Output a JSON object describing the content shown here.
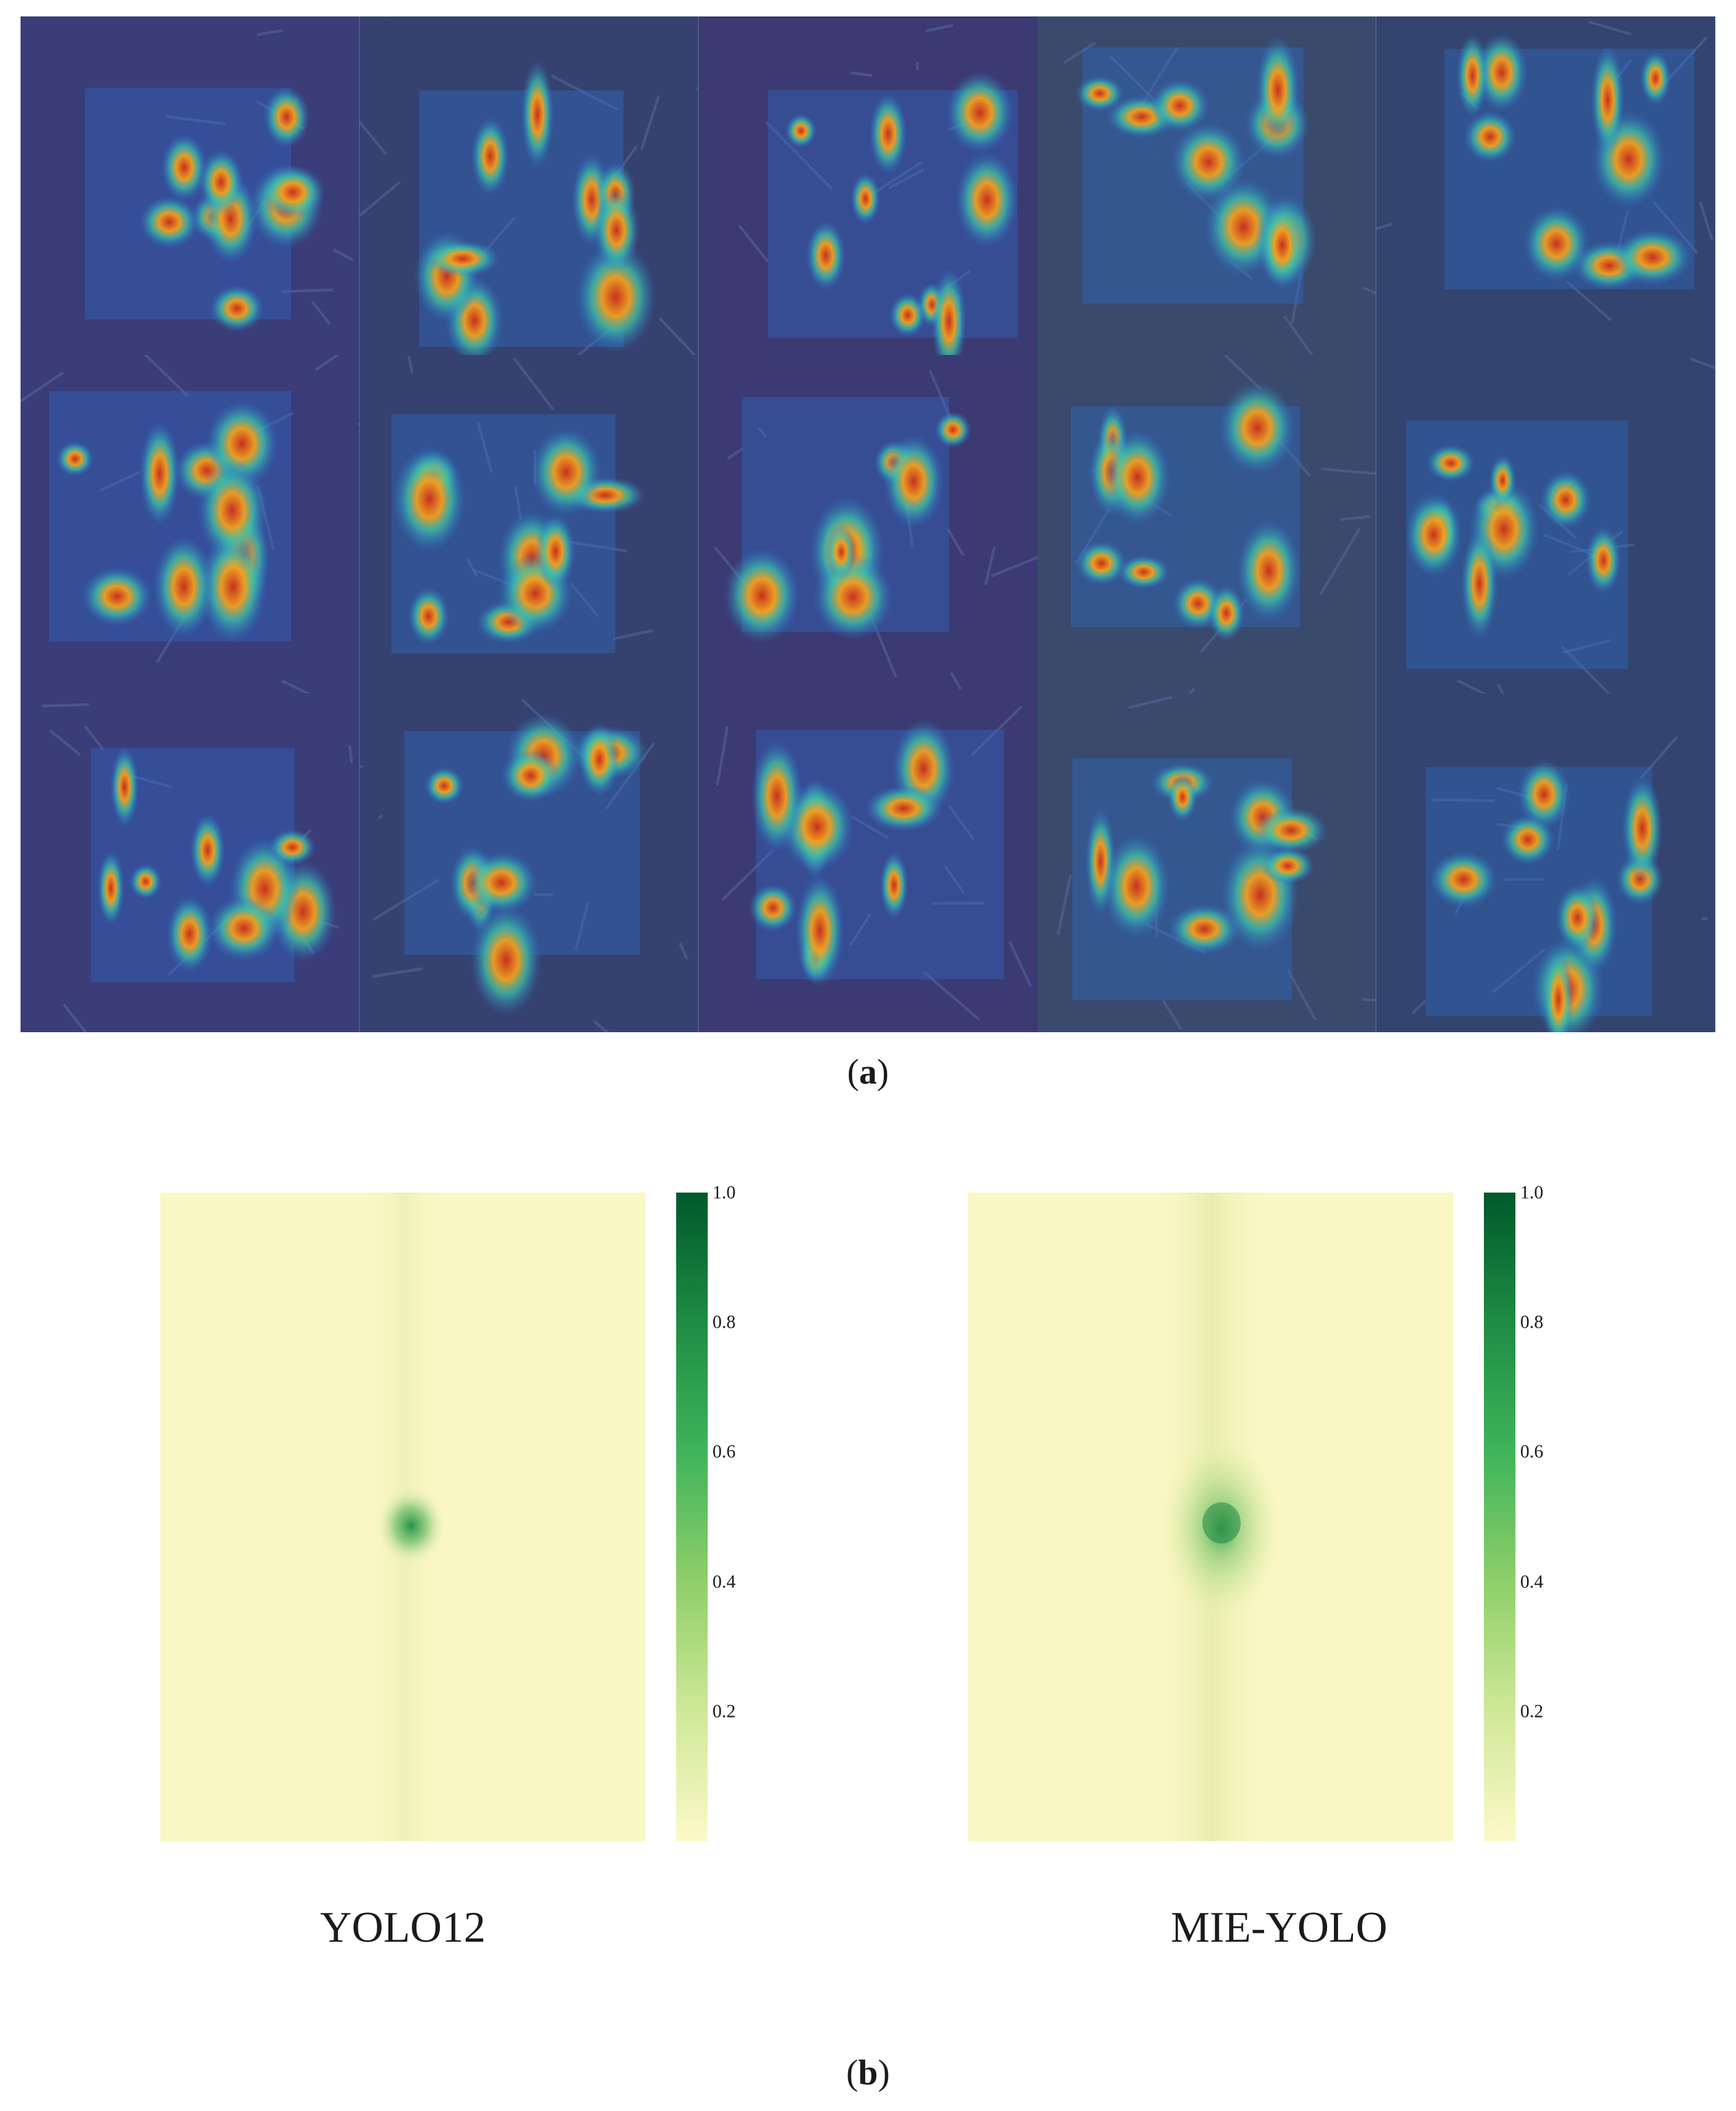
{
  "figure": {
    "panel_a_label": "a",
    "panel_b_label": "b"
  },
  "panel_a": {
    "rows": 3,
    "columns": 5,
    "cells": [
      {
        "id": 1,
        "content": "grad-cam overlay"
      },
      {
        "id": 2,
        "content": "grad-cam overlay"
      },
      {
        "id": 3,
        "content": "grad-cam overlay"
      },
      {
        "id": 4,
        "content": "grad-cam overlay"
      },
      {
        "id": 5,
        "content": "grad-cam overlay"
      },
      {
        "id": 6,
        "content": "grad-cam overlay"
      },
      {
        "id": 7,
        "content": "grad-cam overlay"
      },
      {
        "id": 8,
        "content": "grad-cam overlay"
      },
      {
        "id": 9,
        "content": "grad-cam overlay"
      },
      {
        "id": 10,
        "content": "grad-cam overlay"
      },
      {
        "id": 11,
        "content": "grad-cam overlay"
      },
      {
        "id": 12,
        "content": "grad-cam overlay"
      },
      {
        "id": 13,
        "content": "grad-cam overlay"
      },
      {
        "id": 14,
        "content": "grad-cam overlay"
      },
      {
        "id": 15,
        "content": "grad-cam overlay"
      }
    ]
  },
  "colors": {
    "heatmap_low": "#fbf7c4",
    "heatmap_high": "#00592b",
    "cam_background": "#3b3f7a"
  },
  "chart_data": [
    {
      "type": "heatmap",
      "series_label": "YOLO12",
      "colorbar_ticks": [
        "0.2",
        "0.4",
        "0.6",
        "0.8",
        "1.0"
      ],
      "colorbar_range": [
        0,
        1.0
      ],
      "hotspot": {
        "peak": 0.65,
        "spread": "small"
      }
    },
    {
      "type": "heatmap",
      "series_label": "MIE-YOLO",
      "colorbar_ticks": [
        "0.2",
        "0.4",
        "0.6",
        "0.8",
        "1.0"
      ],
      "colorbar_range": [
        0,
        1.0
      ],
      "hotspot": {
        "peak": 0.6,
        "spread": "large"
      }
    }
  ]
}
